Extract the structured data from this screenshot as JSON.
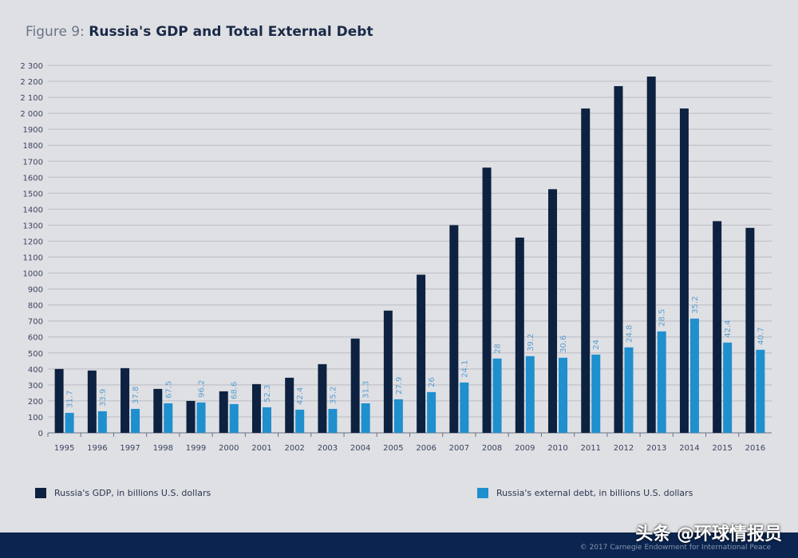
{
  "title_prefix": "Figure 9:",
  "title": "Russia's GDP and Total External Debt",
  "colors": {
    "gdp": "#0d2140",
    "debt": "#1f8fce",
    "background": "#dfe0e4",
    "footer": "#0b2550",
    "label": "#5a9fd0"
  },
  "chart_data": {
    "type": "bar",
    "title": "Russia's GDP and Total External Debt",
    "categories": [
      "1995",
      "1996",
      "1997",
      "1998",
      "1999",
      "2000",
      "2001",
      "2002",
      "2003",
      "2004",
      "2005",
      "2006",
      "2007",
      "2008",
      "2009",
      "2010",
      "2011",
      "2012",
      "2013",
      "2014",
      "2015",
      "2016"
    ],
    "series": [
      {
        "name": "Russia's GDP, in billions U.S. dollars",
        "values": [
          400,
          390,
          405,
          275,
          200,
          260,
          305,
          345,
          430,
          590,
          765,
          990,
          1300,
          1660,
          1222,
          1525,
          2030,
          2170,
          2230,
          2030,
          1325,
          1283
        ]
      },
      {
        "name": "Russia's external debt, in billions U.S. dollars",
        "values": [
          125,
          135,
          150,
          185,
          190,
          180,
          160,
          145,
          150,
          185,
          210,
          255,
          315,
          465,
          480,
          470,
          490,
          535,
          635,
          715,
          565,
          520
        ]
      }
    ],
    "debt_labels": [
      "31.7",
      "33.9",
      "37.8",
      "67.5",
      "96.2",
      "68.6",
      "52.3",
      "42.4",
      "35.2",
      "31.3",
      "27.9",
      "26",
      "24.1",
      "28",
      "39.2",
      "30.6",
      "24",
      "24.8",
      "28.5",
      "35.2",
      "42.4",
      "40.7"
    ],
    "yticks": [
      "0",
      "100",
      "200",
      "300",
      "400",
      "500",
      "600",
      "700",
      "800",
      "900",
      "1000",
      "1100",
      "1200",
      "1300",
      "1400",
      "1500",
      "1600",
      "1700",
      "1800",
      "1900",
      "2 000",
      "2 100",
      "2 200",
      "2 300"
    ],
    "ylim": [
      0,
      2300
    ],
    "grid": true,
    "legend_position": "bottom"
  },
  "watermark": "头条 @环球情报员",
  "copyright": "© 2017 Carnegie Endowment for International Peace"
}
